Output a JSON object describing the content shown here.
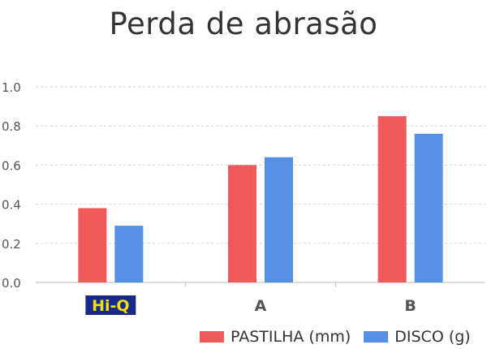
{
  "chart_data": {
    "type": "bar",
    "title": "Perda de abrasão",
    "categories": [
      "Hi-Q",
      "A",
      "B"
    ],
    "series": [
      {
        "name": "PASTILHA (mm)",
        "color": "#f05a5b",
        "values": [
          0.38,
          0.6,
          0.85
        ]
      },
      {
        "name": "DISCO (g)",
        "color": "#5590e6",
        "values": [
          0.29,
          0.64,
          0.76
        ]
      }
    ],
    "yticks": [
      "0.0",
      "0.2",
      "0.4",
      "0.6",
      "0.8",
      "1.0"
    ],
    "ylim": [
      0,
      1.0
    ],
    "grid": true,
    "legend_position": "bottom-right",
    "category_label_styles": {
      "Hi-Q": {
        "background": "#1a2a8a",
        "color": "#f2e300"
      }
    }
  }
}
